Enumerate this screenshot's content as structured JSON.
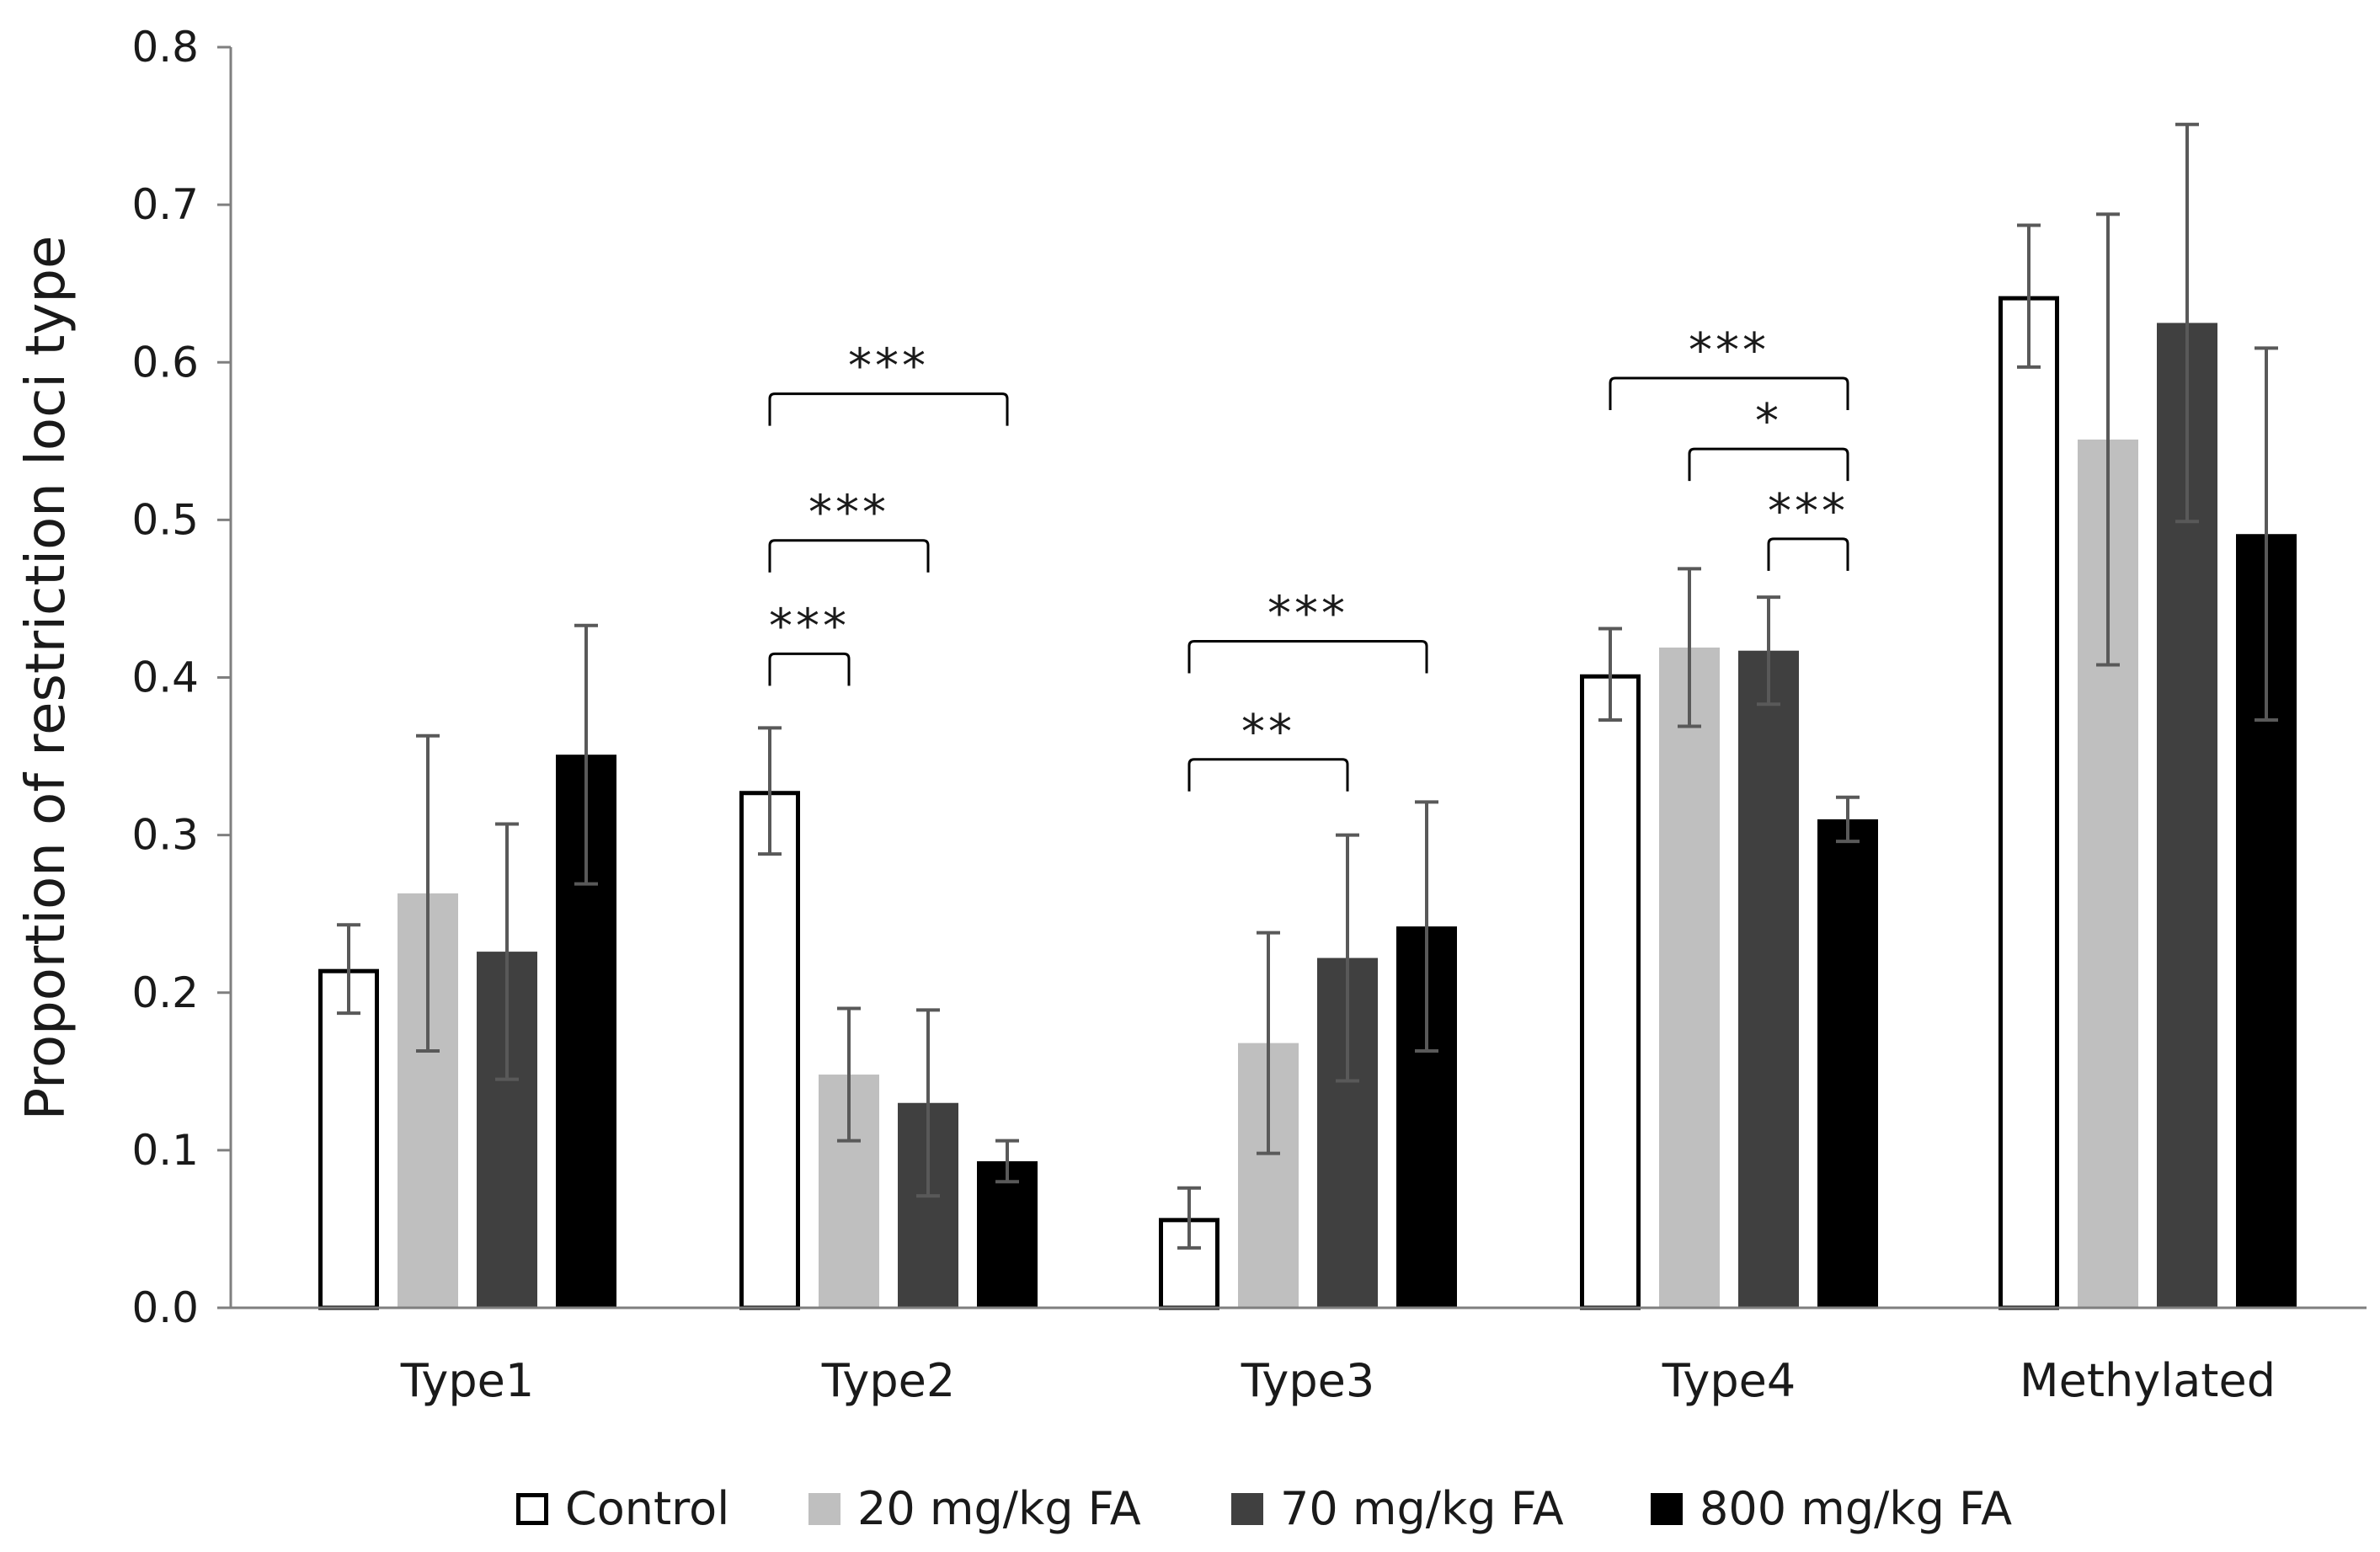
{
  "chart_data": {
    "type": "bar",
    "title": "",
    "xlabel": "",
    "ylabel": "Proportion of restriction loci type",
    "ylim": [
      0,
      0.8
    ],
    "yticks": [
      "0.0",
      "0.1",
      "0.2",
      "0.3",
      "0.4",
      "0.5",
      "0.6",
      "0.7",
      "0.8"
    ],
    "grid": false,
    "legend_position": "bottom",
    "categories": [
      "Type1",
      "Type2",
      "Type3",
      "Type4",
      "Methylated"
    ],
    "series": [
      {
        "name": "Control",
        "color": "#ffffff",
        "edge": "#000000",
        "values": [
          0.215,
          0.328,
          0.057,
          0.402,
          0.642
        ],
        "errors": [
          0.028,
          0.04,
          0.019,
          0.029,
          0.045
        ]
      },
      {
        "name": "20 mg/kg FA",
        "color": "#bfbfbf",
        "edge": "#bfbfbf",
        "values": [
          0.263,
          0.148,
          0.168,
          0.419,
          0.551
        ],
        "errors": [
          0.1,
          0.042,
          0.07,
          0.05,
          0.143
        ]
      },
      {
        "name": "70 mg/kg FA",
        "color": "#404040",
        "edge": "#404040",
        "values": [
          0.226,
          0.13,
          0.222,
          0.417,
          0.625
        ],
        "errors": [
          0.081,
          0.059,
          0.078,
          0.034,
          0.126
        ]
      },
      {
        "name": "800 mg/kg FA",
        "color": "#000000",
        "edge": "#000000",
        "values": [
          0.351,
          0.093,
          0.242,
          0.31,
          0.491
        ],
        "errors": [
          0.082,
          0.013,
          0.079,
          0.014,
          0.118
        ]
      }
    ],
    "significance": [
      {
        "category": 1,
        "from": 0,
        "to": 3,
        "label": "***",
        "level": 0.58
      },
      {
        "category": 1,
        "from": 0,
        "to": 2,
        "label": "***",
        "level": 0.487
      },
      {
        "category": 1,
        "from": 0,
        "to": 1,
        "label": "***",
        "level": 0.415
      },
      {
        "category": 2,
        "from": 0,
        "to": 3,
        "label": "***",
        "level": 0.423
      },
      {
        "category": 2,
        "from": 0,
        "to": 2,
        "label": "**",
        "level": 0.348
      },
      {
        "category": 3,
        "from": 0,
        "to": 3,
        "label": "***",
        "level": 0.59
      },
      {
        "category": 3,
        "from": 1,
        "to": 3,
        "label": "*",
        "level": 0.545
      },
      {
        "category": 3,
        "from": 2,
        "to": 3,
        "label": "***",
        "level": 0.488
      }
    ]
  }
}
